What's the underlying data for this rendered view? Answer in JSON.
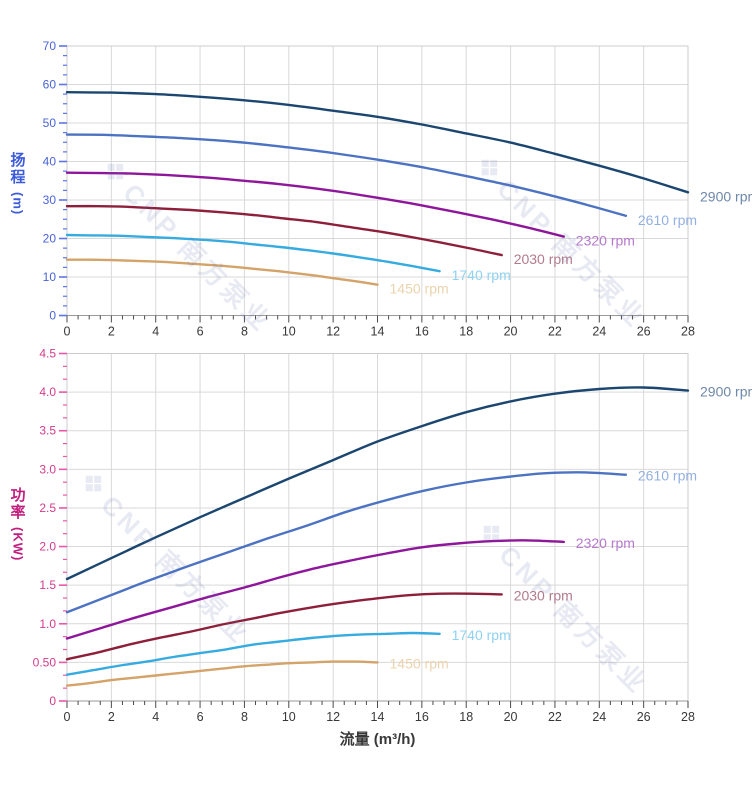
{
  "axes": {
    "flow_title": "流量 (m³/h)",
    "head_title_chars": [
      "扬",
      "程"
    ],
    "head_unit": "(m)",
    "power_title_chars": [
      "功",
      "率"
    ],
    "power_unit": "(KW)"
  },
  "watermark": {
    "logo_glyph": "❖",
    "text": "CNP 南方泵业"
  },
  "colors": {
    "background": "#ffffff",
    "grid": "#d9d9d9",
    "border": "#cccccc",
    "baseline": "#9a9a9a",
    "x_tick": "#4a4a4a",
    "x_tick_label": "#383838",
    "head_axis_accent": "#3b5bdb",
    "power_axis_accent": "#c01f7d"
  },
  "chart_data": [
    {
      "type": "line",
      "name": "head-vs-flow-chart",
      "title": "",
      "xlabel": "流量 (m³/h)",
      "ylabel": "扬程 (m)",
      "xlim": [
        0,
        28
      ],
      "ylim": [
        0,
        70
      ],
      "grid": true,
      "legend_position": "end-of-line",
      "x_major_step": 2,
      "x_minor_per_major": 4,
      "y_major_step": 10,
      "y_minor_per_major": 4,
      "tick_color": "#5b74e8",
      "tick_label_color": "#4a63d8",
      "x_ticks": {
        "values": [
          0,
          2,
          4,
          6,
          8,
          10,
          12,
          14,
          16,
          18,
          20,
          22,
          24,
          26,
          28
        ],
        "labels": [
          "0",
          "2",
          "4",
          "6",
          "8",
          "10",
          "12",
          "14",
          "16",
          "18",
          "20",
          "22",
          "24",
          "26",
          "28"
        ]
      },
      "y_ticks": {
        "values": [
          0,
          10,
          20,
          30,
          40,
          50,
          60,
          70
        ],
        "labels": [
          "0",
          "10",
          "20",
          "30",
          "40",
          "50",
          "60",
          "70"
        ]
      },
      "series": [
        {
          "name": "2900 rpm",
          "rpm": 2900,
          "color": "#1b4670",
          "label_color": "#6e88aa",
          "points": [
            [
              0,
              58
            ],
            [
              2,
              57.9
            ],
            [
              4,
              57.5
            ],
            [
              6,
              56.8
            ],
            [
              8,
              55.9
            ],
            [
              10,
              54.7
            ],
            [
              12,
              53.2
            ],
            [
              14,
              51.6
            ],
            [
              16,
              49.6
            ],
            [
              18,
              47.3
            ],
            [
              20,
              44.9
            ],
            [
              22,
              42.0
            ],
            [
              24,
              38.9
            ],
            [
              26,
              35.6
            ],
            [
              28,
              32.0
            ]
          ]
        },
        {
          "name": "2610 rpm",
          "rpm": 2610,
          "color": "#4c72c2",
          "label_color": "#93b0e2",
          "points": [
            [
              0,
              47.0
            ],
            [
              1.8,
              46.9
            ],
            [
              3.6,
              46.5
            ],
            [
              5.4,
              46.0
            ],
            [
              7.2,
              45.3
            ],
            [
              9,
              44.3
            ],
            [
              10.8,
              43.1
            ],
            [
              12.6,
              41.7
            ],
            [
              14.4,
              40.1
            ],
            [
              16.2,
              38.3
            ],
            [
              18,
              36.2
            ],
            [
              19.8,
              34.0
            ],
            [
              21.6,
              31.5
            ],
            [
              23.4,
              28.8
            ],
            [
              25.2,
              25.9
            ]
          ]
        },
        {
          "name": "2320 rpm",
          "rpm": 2320,
          "color": "#8e169a",
          "label_color": "#b778cd",
          "points": [
            [
              0,
              37.1
            ],
            [
              1.6,
              37.0
            ],
            [
              3.2,
              36.8
            ],
            [
              4.8,
              36.4
            ],
            [
              6.4,
              35.8
            ],
            [
              8,
              35.0
            ],
            [
              9.6,
              34.1
            ],
            [
              11.2,
              33.0
            ],
            [
              12.8,
              31.7
            ],
            [
              14.4,
              30.2
            ],
            [
              16,
              28.6
            ],
            [
              17.6,
              26.8
            ],
            [
              19.2,
              24.9
            ],
            [
              20.8,
              22.8
            ],
            [
              22.4,
              20.5
            ]
          ]
        },
        {
          "name": "2030 rpm",
          "rpm": 2030,
          "color": "#8e1f3a",
          "label_color": "#b27b8c",
          "points": [
            [
              0,
              28.4
            ],
            [
              1.4,
              28.4
            ],
            [
              2.8,
              28.2
            ],
            [
              4.2,
              27.8
            ],
            [
              5.6,
              27.4
            ],
            [
              7,
              26.8
            ],
            [
              8.4,
              26.1
            ],
            [
              9.8,
              25.2
            ],
            [
              11.2,
              24.3
            ],
            [
              12.6,
              23.1
            ],
            [
              14,
              21.9
            ],
            [
              15.4,
              20.5
            ],
            [
              16.8,
              19.0
            ],
            [
              18.2,
              17.4
            ],
            [
              19.6,
              15.7
            ]
          ]
        },
        {
          "name": "1740 rpm",
          "rpm": 1740,
          "color": "#36abe0",
          "label_color": "#8fd2f4",
          "points": [
            [
              0,
              20.9
            ],
            [
              1.2,
              20.8
            ],
            [
              2.4,
              20.7
            ],
            [
              3.6,
              20.4
            ],
            [
              4.8,
              20.1
            ],
            [
              6,
              19.7
            ],
            [
              7.2,
              19.2
            ],
            [
              8.4,
              18.5
            ],
            [
              9.6,
              17.8
            ],
            [
              10.8,
              17.0
            ],
            [
              12,
              16.1
            ],
            [
              13.2,
              15.1
            ],
            [
              14.4,
              14.0
            ],
            [
              15.6,
              12.8
            ],
            [
              16.8,
              11.5
            ]
          ]
        },
        {
          "name": "1450 rpm",
          "rpm": 1450,
          "color": "#d3a369",
          "label_color": "#ecd3ad",
          "points": [
            [
              0,
              14.5
            ],
            [
              1,
              14.5
            ],
            [
              2,
              14.4
            ],
            [
              3,
              14.2
            ],
            [
              4,
              14.0
            ],
            [
              5,
              13.7
            ],
            [
              6,
              13.3
            ],
            [
              7,
              12.9
            ],
            [
              8,
              12.4
            ],
            [
              9,
              11.8
            ],
            [
              10,
              11.2
            ],
            [
              11,
              10.5
            ],
            [
              12,
              9.7
            ],
            [
              13,
              8.9
            ],
            [
              14,
              8.0
            ]
          ]
        }
      ]
    },
    {
      "type": "line",
      "name": "power-vs-flow-chart",
      "title": "",
      "xlabel": "流量 (m³/h)",
      "ylabel": "功率 (KW)",
      "xlim": [
        0,
        28
      ],
      "ylim": [
        0,
        4.5
      ],
      "grid": true,
      "legend_position": "end-of-line",
      "x_major_step": 2,
      "x_minor_per_major": 4,
      "y_major_step": 0.5,
      "y_minor_per_major": 3,
      "tick_color": "#ea58a8",
      "tick_label_color": "#d23c8c",
      "x_ticks": {
        "values": [
          0,
          2,
          4,
          6,
          8,
          10,
          12,
          14,
          16,
          18,
          20,
          22,
          24,
          26,
          28
        ],
        "labels": [
          "0",
          "2",
          "4",
          "6",
          "8",
          "10",
          "12",
          "14",
          "16",
          "18",
          "20",
          "22",
          "24",
          "26",
          "28"
        ]
      },
      "y_ticks": {
        "values": [
          0,
          0.5,
          1,
          1.5,
          2,
          2.5,
          3,
          3.5,
          4,
          4.5
        ],
        "labels": [
          "0",
          "0.50",
          "1.0",
          "1.5",
          "2.0",
          "2.5",
          "3.0",
          "3.5",
          "4.0",
          "4.5"
        ]
      },
      "series": [
        {
          "name": "2900 rpm",
          "rpm": 2900,
          "color": "#1b4670",
          "label_color": "#6e88aa",
          "points": [
            [
              0,
              1.58
            ],
            [
              2,
              1.85
            ],
            [
              4,
              2.12
            ],
            [
              6,
              2.38
            ],
            [
              8,
              2.63
            ],
            [
              10,
              2.88
            ],
            [
              12,
              3.12
            ],
            [
              14,
              3.36
            ],
            [
              16,
              3.56
            ],
            [
              18,
              3.74
            ],
            [
              20,
              3.88
            ],
            [
              22,
              3.98
            ],
            [
              24,
              4.04
            ],
            [
              26,
              4.06
            ],
            [
              28,
              4.02
            ]
          ]
        },
        {
          "name": "2610 rpm",
          "rpm": 2610,
          "color": "#4c72c2",
          "label_color": "#93b0e2",
          "points": [
            [
              0,
              1.15
            ],
            [
              1.8,
              1.35
            ],
            [
              3.6,
              1.55
            ],
            [
              5.4,
              1.74
            ],
            [
              7.2,
              1.92
            ],
            [
              9,
              2.1
            ],
            [
              10.8,
              2.27
            ],
            [
              12.6,
              2.45
            ],
            [
              14.4,
              2.6
            ],
            [
              16.2,
              2.73
            ],
            [
              18,
              2.83
            ],
            [
              19.8,
              2.9
            ],
            [
              21.6,
              2.95
            ],
            [
              23.4,
              2.96
            ],
            [
              25.2,
              2.93
            ]
          ]
        },
        {
          "name": "2320 rpm",
          "rpm": 2320,
          "color": "#8e169a",
          "label_color": "#b778cd",
          "points": [
            [
              0,
              0.81
            ],
            [
              1.6,
              0.95
            ],
            [
              3.2,
              1.09
            ],
            [
              4.8,
              1.22
            ],
            [
              6.4,
              1.35
            ],
            [
              8,
              1.47
            ],
            [
              9.6,
              1.6
            ],
            [
              11.2,
              1.72
            ],
            [
              12.8,
              1.82
            ],
            [
              14.4,
              1.91
            ],
            [
              16,
              1.99
            ],
            [
              17.6,
              2.04
            ],
            [
              19.2,
              2.07
            ],
            [
              20.8,
              2.08
            ],
            [
              22.4,
              2.06
            ]
          ]
        },
        {
          "name": "2030 rpm",
          "rpm": 2030,
          "color": "#8e1f3a",
          "label_color": "#b27b8c",
          "points": [
            [
              0,
              0.54
            ],
            [
              1.4,
              0.63
            ],
            [
              2.8,
              0.73
            ],
            [
              4.2,
              0.82
            ],
            [
              5.6,
              0.9
            ],
            [
              7,
              0.99
            ],
            [
              8.4,
              1.07
            ],
            [
              9.8,
              1.15
            ],
            [
              11.2,
              1.22
            ],
            [
              12.6,
              1.28
            ],
            [
              14,
              1.33
            ],
            [
              15.4,
              1.37
            ],
            [
              16.8,
              1.39
            ],
            [
              18.2,
              1.39
            ],
            [
              19.6,
              1.38
            ]
          ]
        },
        {
          "name": "1740 rpm",
          "rpm": 1740,
          "color": "#36abe0",
          "label_color": "#8fd2f4",
          "points": [
            [
              0,
              0.34
            ],
            [
              1.2,
              0.4
            ],
            [
              2.4,
              0.46
            ],
            [
              3.6,
              0.51
            ],
            [
              4.8,
              0.57
            ],
            [
              6,
              0.62
            ],
            [
              7.2,
              0.67
            ],
            [
              8.4,
              0.73
            ],
            [
              9.6,
              0.77
            ],
            [
              10.8,
              0.81
            ],
            [
              12,
              0.84
            ],
            [
              13.2,
              0.86
            ],
            [
              14.4,
              0.87
            ],
            [
              15.6,
              0.88
            ],
            [
              16.8,
              0.87
            ]
          ]
        },
        {
          "name": "1450 rpm",
          "rpm": 1450,
          "color": "#d3a369",
          "label_color": "#ecd3ad",
          "points": [
            [
              0,
              0.2
            ],
            [
              1,
              0.23
            ],
            [
              2,
              0.27
            ],
            [
              3,
              0.3
            ],
            [
              4,
              0.33
            ],
            [
              5,
              0.36
            ],
            [
              6,
              0.39
            ],
            [
              7,
              0.42
            ],
            [
              8,
              0.45
            ],
            [
              9,
              0.47
            ],
            [
              10,
              0.49
            ],
            [
              11,
              0.5
            ],
            [
              12,
              0.51
            ],
            [
              13,
              0.51
            ],
            [
              14,
              0.5
            ]
          ]
        }
      ]
    }
  ]
}
